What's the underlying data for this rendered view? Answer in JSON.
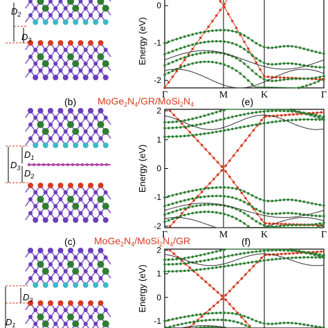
{
  "labels": {
    "D1": "D",
    "D1_sub": "1",
    "D2": "D",
    "D2_sub": "2",
    "D3": "D",
    "D3_sub": "3"
  },
  "panels": {
    "b": {
      "letter": "(b)",
      "title_pre": "MoGe",
      "title_sub1": "2",
      "title_mid1": "N",
      "title_sub2": "4",
      "title_mid2": "/GR/MoSi",
      "title_sub3": "2",
      "title_mid3": "N",
      "title_sub4": "4"
    },
    "c": {
      "letter": "(c)",
      "title_pre": "MoGe",
      "title_sub1": "2",
      "title_mid1": "N",
      "title_sub2": "4",
      "title_mid2": "/MoSi",
      "title_sub3": "2",
      "title_mid3": "N",
      "title_sub4": "4",
      "title_end": "/GR"
    },
    "e": {
      "letter": "(e)"
    },
    "f": {
      "letter": "(f)"
    }
  },
  "band_plots": {
    "ylabel": "Energy (eV)",
    "yticks_top": [
      "0",
      "-1",
      "-2"
    ],
    "yticks_mid": [
      "2",
      "1",
      "0",
      "-1",
      "-2"
    ],
    "yticks_bot": [
      "2",
      "1",
      "0",
      "-1"
    ],
    "kpoints": [
      "Γ",
      "M",
      "K",
      "Γ"
    ]
  },
  "chart_data": {
    "type": "line",
    "ylabel": "Energy (eV)",
    "ylim": [
      -2,
      2
    ],
    "x": [
      "Γ",
      "M",
      "K",
      "Γ"
    ],
    "series": []
  },
  "colors": {
    "red": "#d63a1f",
    "green": "#2e7d32",
    "purple": "#6a3fb8",
    "cyan": "#3cb8c8",
    "graphene": "#b04aa8",
    "gray_band": "#555555"
  }
}
